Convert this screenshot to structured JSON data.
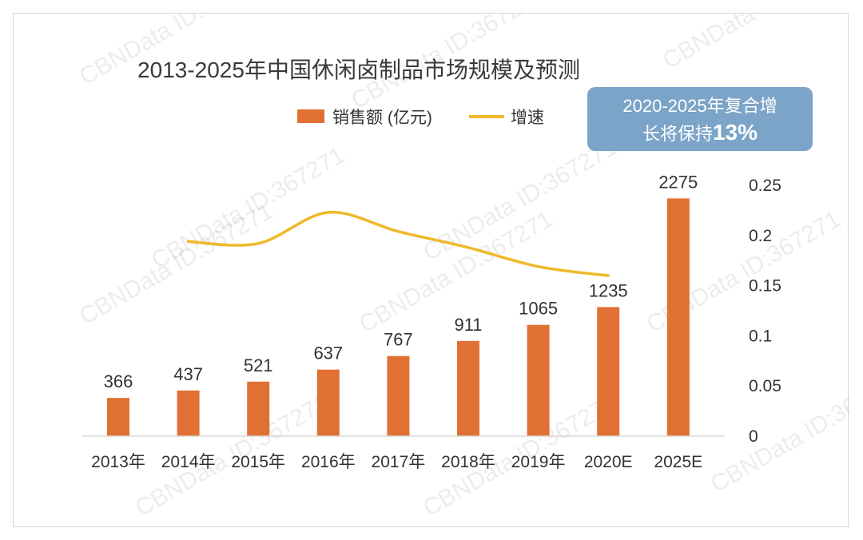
{
  "chart_data": {
    "type": "bar",
    "title": "2013-2025年中国休闲卤制品市场规模及预测",
    "categories": [
      "2013年",
      "2014年",
      "2015年",
      "2016年",
      "2017年",
      "2018年",
      "2019年",
      "2020E",
      "2025E"
    ],
    "series": [
      {
        "name": "销售额 (亿元)",
        "type": "bar",
        "axis": "primary",
        "values": [
          366,
          437,
          521,
          637,
          767,
          911,
          1065,
          1235,
          2275
        ],
        "labels": [
          "366",
          "437",
          "521",
          "637",
          "767",
          "911",
          "1065",
          "1235",
          "2275"
        ],
        "color": "#e07033"
      },
      {
        "name": "增速",
        "type": "line",
        "axis": "secondary",
        "values": [
          null,
          0.194,
          0.192,
          0.223,
          0.204,
          0.188,
          0.169,
          0.16,
          null
        ],
        "color": "#f0b82a"
      }
    ],
    "y_primary_range": [
      0,
      2400
    ],
    "y_secondary_range": [
      0,
      0.25
    ],
    "y_secondary_ticks": [
      "0.25",
      "0.2",
      "0.15",
      "0.1",
      "0.05",
      "0"
    ],
    "legend_position": "top-center",
    "grid": false,
    "annotation": {
      "line1": "2020-2025年复合增",
      "line2_prefix": "长将保持",
      "line2_highlight": "13%",
      "background": "#7ba4c8"
    },
    "watermark": "CBNData ID:367271"
  }
}
